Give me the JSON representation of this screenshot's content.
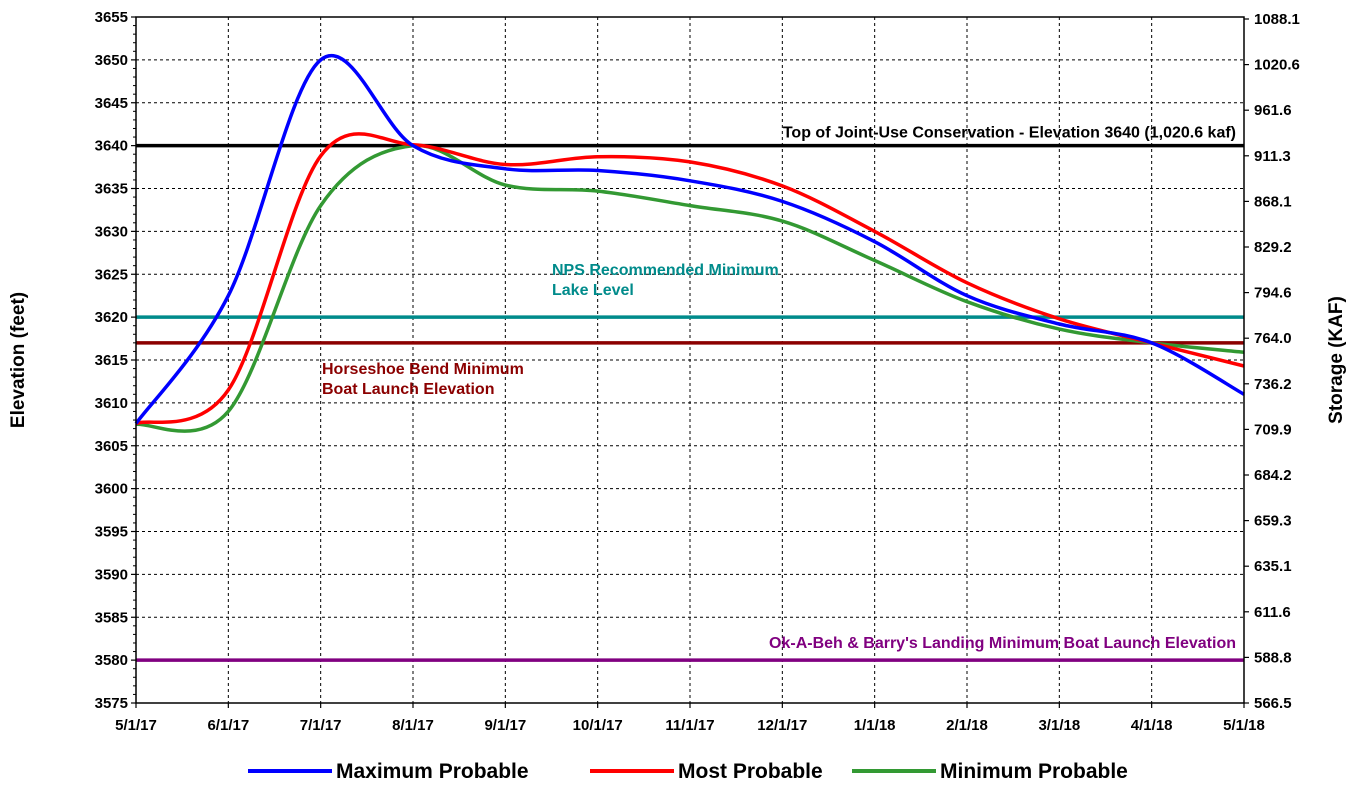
{
  "chart_data": {
    "type": "line",
    "title": "",
    "ylabel": "Elevation (feet)",
    "y2label": "Storage (KAF)",
    "ylim": [
      3575,
      3655
    ],
    "y_ticks": [
      3655,
      3650,
      3645,
      3640,
      3635,
      3630,
      3625,
      3620,
      3615,
      3610,
      3605,
      3600,
      3595,
      3590,
      3585,
      3580,
      3575
    ],
    "y2_tick_labels": [
      "1088.1",
      "1020.6",
      "961.6",
      "911.3",
      "868.1",
      "829.2",
      "794.6",
      "764.0",
      "736.2",
      "709.9",
      "684.2",
      "659.3",
      "635.1",
      "611.6",
      "588.8",
      "566.5"
    ],
    "x_tick_labels": [
      "5/1/17",
      "6/1/17",
      "7/1/17",
      "8/1/17",
      "9/1/17",
      "10/1/17",
      "11/1/17",
      "12/1/17",
      "1/1/18",
      "2/1/18",
      "3/1/18",
      "4/1/18",
      "5/1/18"
    ],
    "grid": true,
    "legend_position": "bottom",
    "series": [
      {
        "name": "Maximum Probable",
        "color": "#0000ff",
        "x": [
          "5/1/17",
          "6/1/17",
          "7/1/17",
          "8/1/17",
          "9/1/17",
          "10/1/17",
          "11/1/17",
          "12/1/17",
          "1/1/18",
          "2/1/18",
          "3/1/18",
          "4/1/18",
          "5/1/18"
        ],
        "values": [
          3607.6,
          3622.5,
          3650.0,
          3640.0,
          3637.3,
          3637.1,
          3635.9,
          3633.5,
          3628.8,
          3622.5,
          3619.2,
          3617.0,
          3611.0
        ]
      },
      {
        "name": "Most Probable",
        "color": "#ff0000",
        "x": [
          "5/1/17",
          "6/1/17",
          "7/1/17",
          "8/1/17",
          "9/1/17",
          "10/1/17",
          "11/1/17",
          "12/1/17",
          "1/1/18",
          "2/1/18",
          "3/1/18",
          "4/1/18",
          "5/1/18"
        ],
        "values": [
          3607.6,
          3611.5,
          3638.8,
          3640.1,
          3637.8,
          3638.7,
          3638.1,
          3635.3,
          3630.0,
          3624.0,
          3619.8,
          3617.0,
          3614.3
        ]
      },
      {
        "name": "Minimum Probable",
        "color": "#339933",
        "x": [
          "5/1/17",
          "6/1/17",
          "7/1/17",
          "8/1/17",
          "9/1/17",
          "10/1/17",
          "11/1/17",
          "12/1/17",
          "1/1/18",
          "2/1/18",
          "3/1/18",
          "4/1/18",
          "5/1/18"
        ],
        "values": [
          3607.5,
          3609.0,
          3633.0,
          3640.0,
          3635.4,
          3634.7,
          3633.0,
          3631.2,
          3626.6,
          3621.8,
          3618.6,
          3617.0,
          3615.9
        ]
      }
    ],
    "reference_lines": [
      {
        "label": "Top of Joint-Use Conservation - Elevation 3640 (1,020.6 kaf)",
        "value": 3640,
        "color": "#000000"
      },
      {
        "label": "NPS Recommended Minimum Lake Level",
        "line1": "NPS Recommended Minimum",
        "line2": "Lake Level",
        "value": 3620,
        "color": "#008b8b"
      },
      {
        "label": "Horseshoe Bend Minimum Boat Launch Elevation",
        "line1": "Horseshoe Bend Minimum",
        "line2": "Boat Launch Elevation",
        "value": 3617,
        "color": "#8b0000"
      },
      {
        "label": "Ok-A-Beh & Barry's Landing Minimum Boat Launch Elevation",
        "value": 3580,
        "color": "#800080"
      }
    ]
  }
}
